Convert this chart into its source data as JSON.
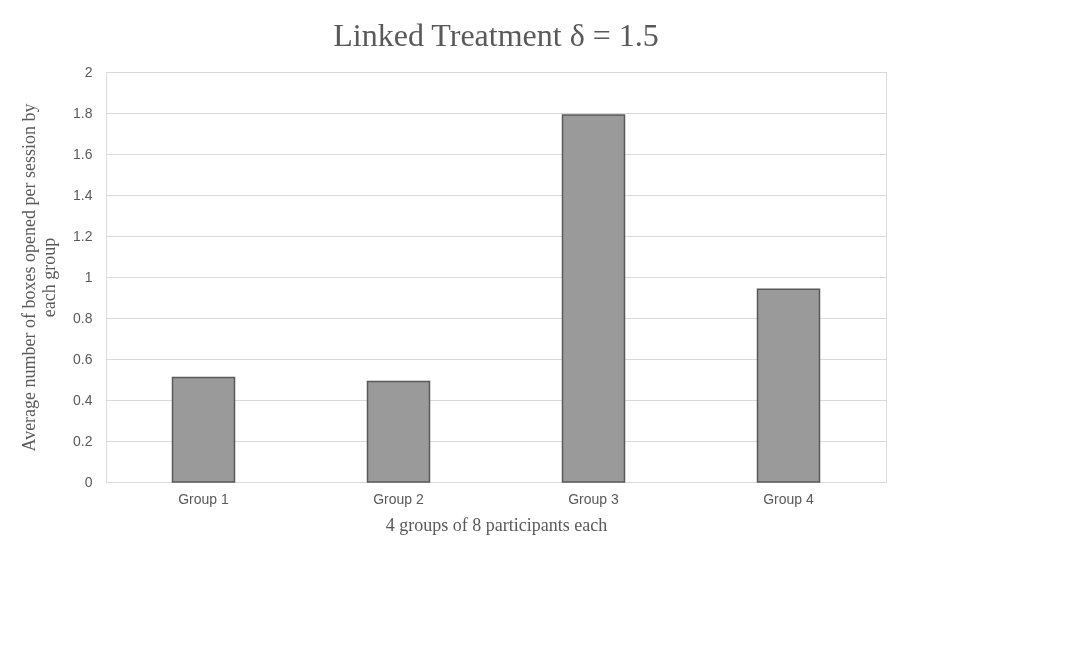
{
  "chart_data": {
    "type": "bar",
    "title": "Linked Treatment δ = 1.5",
    "xlabel": "4 groups of 8 participants each",
    "ylabel": "Average number of boxes opened per session by each group",
    "categories": [
      "Group 1",
      "Group 2",
      "Group 3",
      "Group 4"
    ],
    "values": [
      0.51,
      0.49,
      1.79,
      0.94
    ],
    "color": "#9a9a9a",
    "ylim": [
      0,
      2
    ],
    "yticks": [
      0,
      0.2,
      0.4,
      0.6,
      0.8,
      1,
      1.2,
      1.4,
      1.6,
      1.8,
      2
    ],
    "grid": "y"
  }
}
